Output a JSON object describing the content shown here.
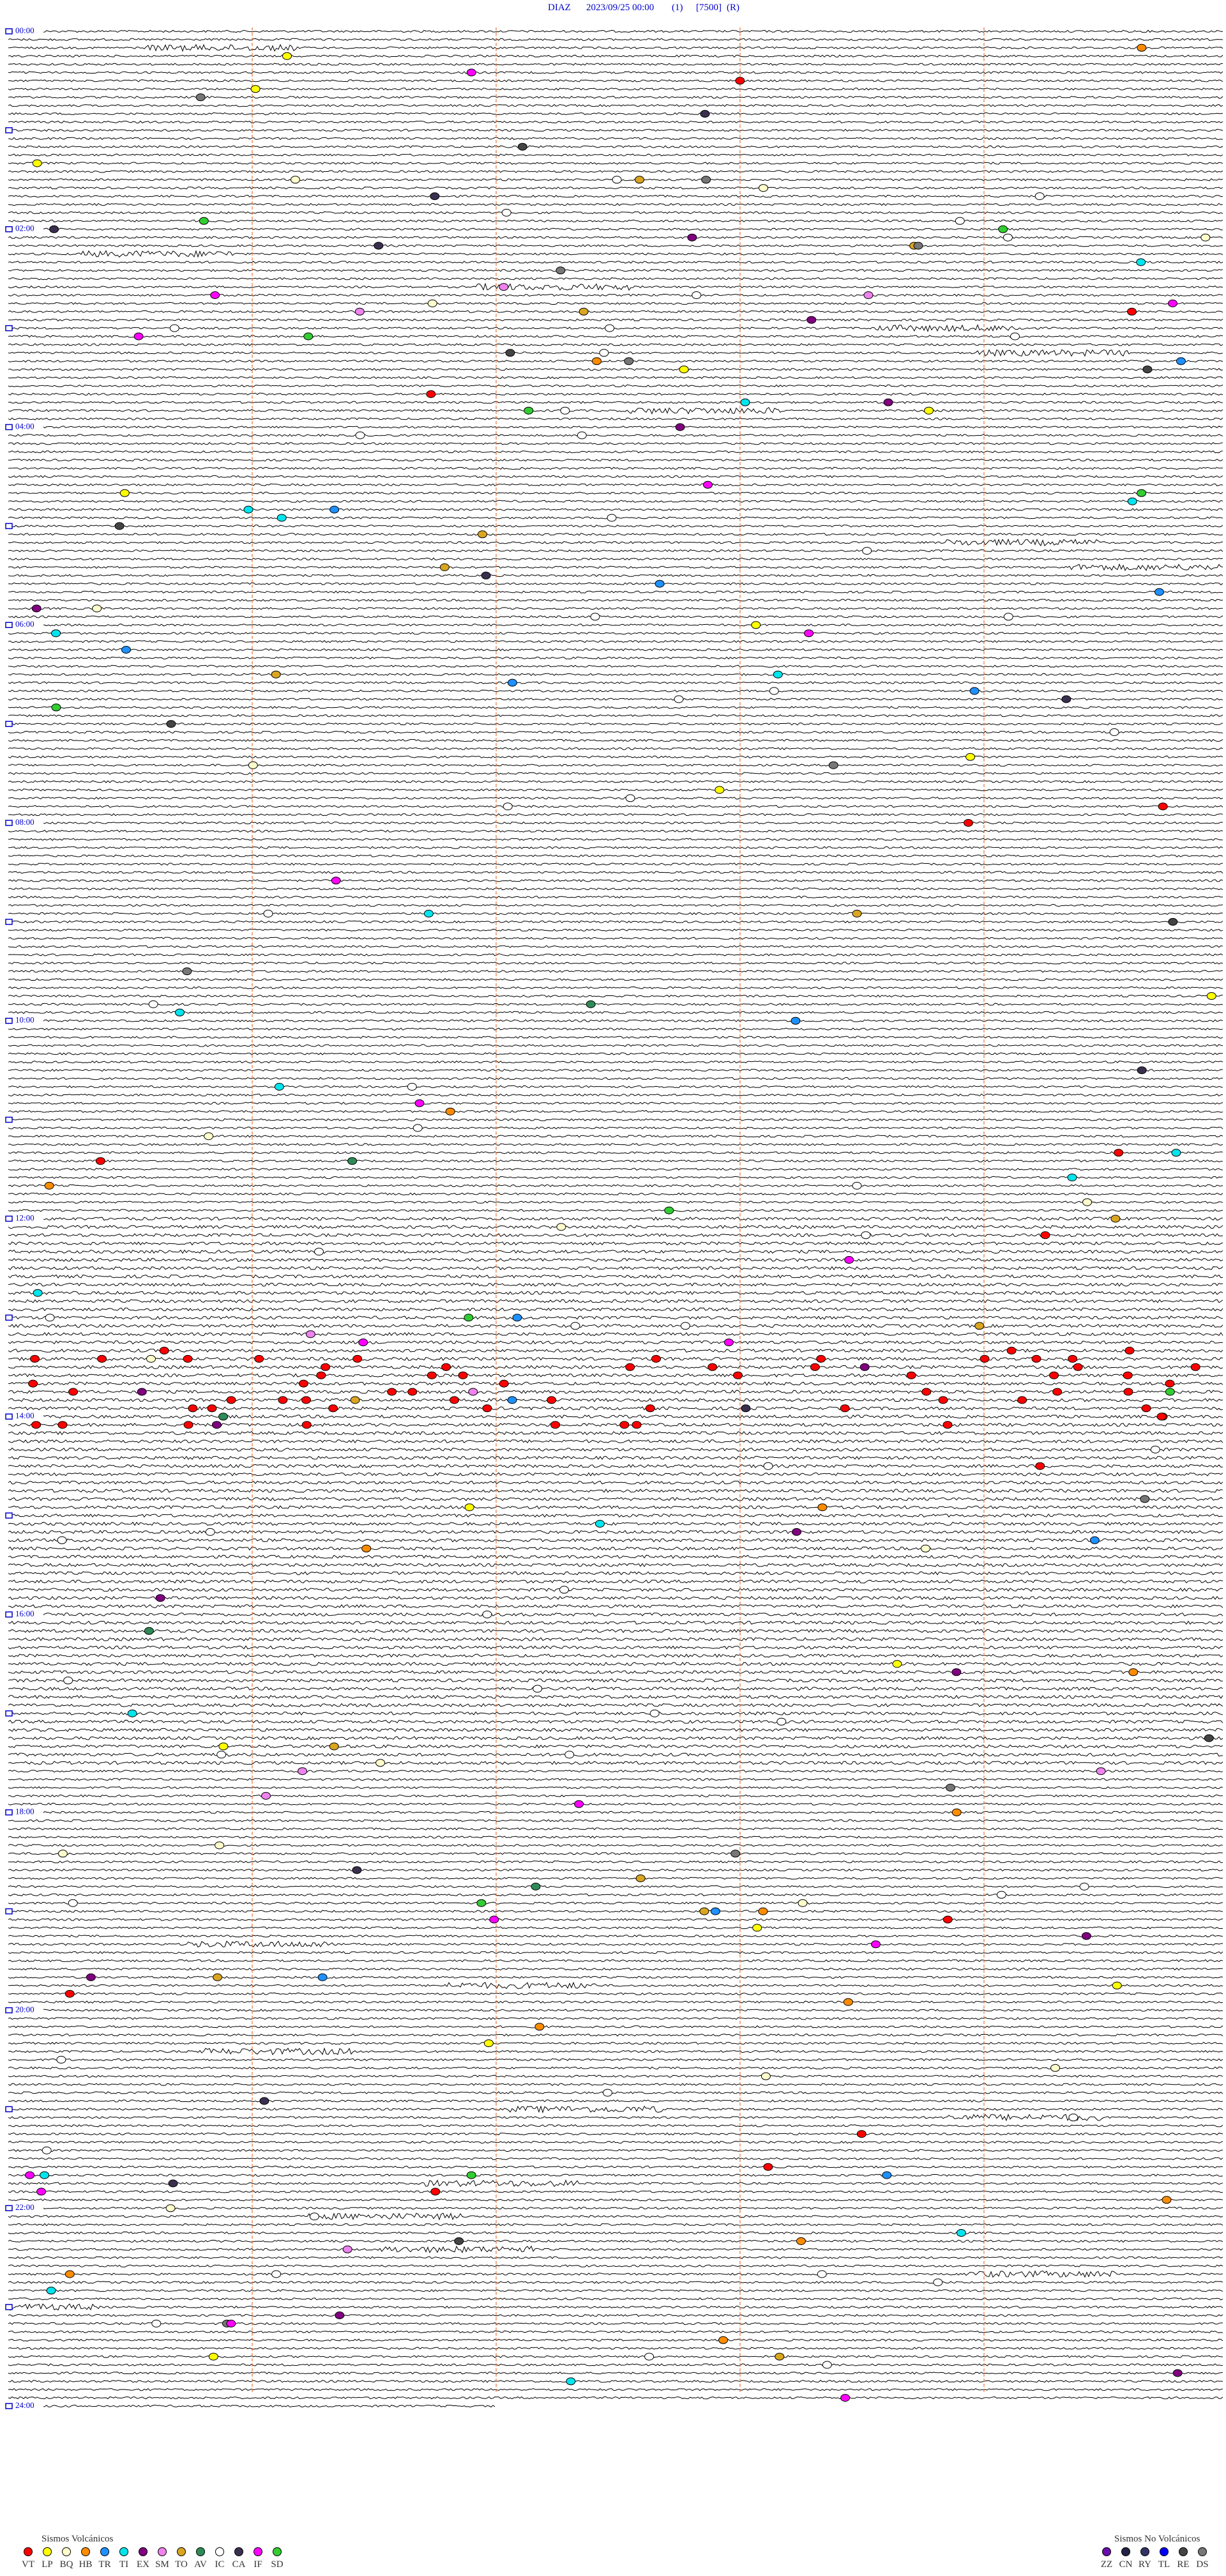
{
  "header": {
    "station": "DIAZ",
    "datetime": "2023/09/25 00:00",
    "channel": "(1)",
    "scale": "[7500]",
    "mode": "(R)"
  },
  "time_labels": [
    "00:00",
    "02:00",
    "04:00",
    "06:00",
    "08:00",
    "10:00",
    "12:00",
    "14:00",
    "16:00",
    "18:00",
    "20:00",
    "22:00",
    "24:00"
  ],
  "legend": [
    {
      "title": "Sismos Volcánicos",
      "items": [
        {
          "code": "VT",
          "color": "#ff0000"
        },
        {
          "code": "LP",
          "color": "#ffff00"
        },
        {
          "code": "BQ",
          "color": "#ffffcc"
        },
        {
          "code": "HB",
          "color": "#ff8c00"
        },
        {
          "code": "TR",
          "color": "#1e90ff"
        },
        {
          "code": "TI",
          "color": "#00e5ee"
        },
        {
          "code": "EX",
          "color": "#800080"
        },
        {
          "code": "SM",
          "color": "#ee82ee"
        },
        {
          "code": "TO",
          "color": "#daa520"
        },
        {
          "code": "AV",
          "color": "#2e8b57"
        },
        {
          "code": "IC",
          "color": "#ffffff"
        },
        {
          "code": "CA",
          "color": "#3b2f4f"
        },
        {
          "code": "IF",
          "color": "#ff00ff"
        },
        {
          "code": "SD",
          "color": "#32cd32"
        }
      ]
    },
    {
      "title": "Sismos No Volcánicos",
      "items": [
        {
          "code": "ZZ",
          "color": "#6a0dad"
        },
        {
          "code": "CN",
          "color": "#222244"
        },
        {
          "code": "RY",
          "color": "#333366"
        },
        {
          "code": "TL",
          "color": "#0000ff"
        },
        {
          "code": "RE",
          "color": "#444444"
        },
        {
          "code": "DS",
          "color": "#777777"
        }
      ]
    }
  ]
}
